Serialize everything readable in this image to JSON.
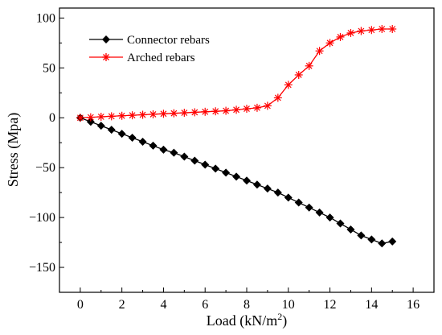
{
  "chart_data": {
    "type": "line",
    "title": "",
    "xlabel": "Load (kN/m",
    "xlabel_sup": "2",
    "xlabel_end": ")",
    "ylabel": "Stress (Mpa)",
    "xlim": [
      -1,
      17
    ],
    "ylim": [
      -175,
      110
    ],
    "xticks": [
      0,
      2,
      4,
      6,
      8,
      10,
      12,
      14,
      16
    ],
    "xtick_labels": [
      "0",
      "2",
      "4",
      "6",
      "8",
      "10",
      "12",
      "14",
      "16"
    ],
    "yticks": [
      100,
      50,
      0,
      -50,
      -100,
      -150
    ],
    "ytick_labels": [
      "100",
      "50",
      "0",
      "−50",
      "−100",
      "−150"
    ],
    "legend_position": "top-left",
    "series": [
      {
        "name": "Connector rebars",
        "color": "#000000",
        "marker": "diamond",
        "x": [
          0,
          0.5,
          1,
          1.5,
          2,
          2.5,
          3,
          3.5,
          4,
          4.5,
          5,
          5.5,
          6,
          6.5,
          7,
          7.5,
          8,
          8.5,
          9,
          9.5,
          10,
          10.5,
          11,
          11.5,
          12,
          12.5,
          13,
          13.5,
          14,
          14.5,
          15
        ],
        "values": [
          0,
          -4,
          -8,
          -12,
          -16,
          -20,
          -24,
          -28,
          -32,
          -35,
          -39,
          -43,
          -47,
          -51,
          -55,
          -59,
          -63,
          -67,
          -71,
          -75,
          -80,
          -85,
          -90,
          -95,
          -100,
          -106,
          -112,
          -118,
          -122,
          -126,
          -124
        ]
      },
      {
        "name": "Arched rebars",
        "color": "#ff0000",
        "marker": "asterisk",
        "x": [
          0,
          0.5,
          1,
          1.5,
          2,
          2.5,
          3,
          3.5,
          4,
          4.5,
          5,
          5.5,
          6,
          6.5,
          7,
          7.5,
          8,
          8.5,
          9,
          9.5,
          10,
          10.5,
          11,
          11.5,
          12,
          12.5,
          13,
          13.5,
          14,
          14.5,
          15
        ],
        "values": [
          0,
          0.5,
          1,
          1.5,
          2,
          2.5,
          3,
          3.5,
          4,
          4.5,
          5,
          5.5,
          6,
          6.5,
          7,
          8,
          9,
          10,
          12,
          20,
          33,
          43,
          52,
          67,
          75,
          81,
          85,
          87,
          88,
          89,
          89
        ]
      }
    ]
  }
}
